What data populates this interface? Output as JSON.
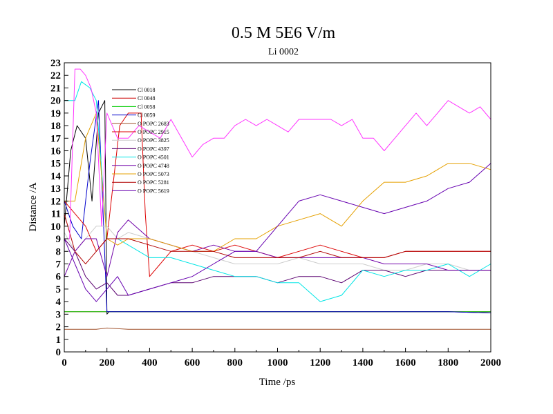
{
  "chart_data": {
    "type": "line",
    "title": "0.5 M 5E6 V/m",
    "subtitle": "Li 0002",
    "xlabel": "Time /ps",
    "ylabel": "Distance /A",
    "xlim": [
      0,
      2000
    ],
    "ylim": [
      0,
      23
    ],
    "xticks": [
      0,
      200,
      400,
      600,
      800,
      1000,
      1200,
      1400,
      1600,
      1800,
      2000
    ],
    "yticks": [
      0,
      1,
      2,
      3,
      4,
      5,
      6,
      7,
      8,
      9,
      10,
      11,
      12,
      13,
      14,
      15,
      16,
      17,
      18,
      19,
      20,
      21,
      22,
      23
    ],
    "grid": false,
    "legend_position": "upper-left inside",
    "series": [
      {
        "name": "Cl 0018",
        "color": "#000000",
        "x": [
          0,
          30,
          60,
          100,
          130,
          160,
          190,
          200,
          210,
          250,
          300,
          400,
          500,
          600,
          800,
          1000,
          1200,
          1400,
          1600,
          1800,
          2000
        ],
        "y": [
          10,
          16,
          18,
          17,
          12,
          19,
          20,
          3,
          3.2,
          3.2,
          3.2,
          3.2,
          3.2,
          3.2,
          3.2,
          3.2,
          3.2,
          3.2,
          3.2,
          3.2,
          3.1
        ]
      },
      {
        "name": "Cl 0048",
        "color": "#cc0000",
        "x": [
          0,
          100,
          200,
          300,
          400,
          500,
          600,
          800,
          1000,
          1200,
          1400,
          1600,
          1800,
          2000
        ],
        "y": [
          3.2,
          3.2,
          3.2,
          3.2,
          3.2,
          3.2,
          3.2,
          3.2,
          3.2,
          3.2,
          3.2,
          3.2,
          3.2,
          3.2
        ]
      },
      {
        "name": "Cl 0058",
        "color": "#00cc00",
        "x": [
          0,
          100,
          200,
          300,
          400,
          500,
          600,
          800,
          1000,
          1200,
          1400,
          1600,
          1800,
          2000
        ],
        "y": [
          3.2,
          3.2,
          3.2,
          3.2,
          3.2,
          3.2,
          3.2,
          3.2,
          3.2,
          3.2,
          3.2,
          3.2,
          3.2,
          3.2
        ]
      },
      {
        "name": "Cl 0059",
        "color": "#0000cc",
        "x": [
          0,
          40,
          80,
          120,
          160,
          180,
          200,
          250,
          300,
          400,
          600,
          800,
          1000,
          1200,
          1400,
          1600,
          1800,
          2000
        ],
        "y": [
          12,
          10,
          9,
          15,
          20,
          12,
          3.2,
          3.2,
          3.2,
          3.2,
          3.2,
          3.2,
          3.2,
          3.2,
          3.2,
          3.2,
          3.2,
          3.1
        ]
      },
      {
        "name": "O POPC 2683",
        "color": "#a0522d",
        "x": [
          0,
          100,
          150,
          200,
          300,
          400,
          600,
          800,
          1000,
          1200,
          1400,
          1600,
          1800,
          2000
        ],
        "y": [
          1.8,
          1.8,
          1.8,
          1.9,
          1.8,
          1.8,
          1.8,
          1.8,
          1.8,
          1.8,
          1.8,
          1.8,
          1.8,
          1.8
        ]
      },
      {
        "name": "O POPC 2915",
        "color": "#dd0000",
        "x": [
          0,
          100,
          150,
          200,
          260,
          300,
          360,
          380,
          400,
          450,
          500,
          600,
          700,
          800,
          900,
          1000,
          1100,
          1200,
          1300,
          1400,
          1500,
          1600,
          1700,
          1800,
          1900,
          2000
        ],
        "y": [
          12,
          10,
          8,
          9,
          18,
          19,
          19,
          11,
          6,
          7,
          8,
          8.5,
          8,
          8.5,
          8,
          7.5,
          8,
          8.5,
          8,
          7.5,
          7.5,
          8,
          8,
          8,
          8,
          8
        ]
      },
      {
        "name": "O POPC 3825",
        "color": "#cccccc",
        "x": [
          0,
          50,
          100,
          150,
          200,
          250,
          300,
          400,
          500,
          600,
          700,
          800,
          900,
          1000,
          1100,
          1200,
          1300,
          1400,
          1500,
          1600,
          1700,
          1800,
          1900,
          2000
        ],
        "y": [
          9.5,
          8,
          9,
          10,
          10,
          9,
          9.5,
          9,
          8.5,
          8,
          7.5,
          7,
          7,
          7,
          7.5,
          7,
          7,
          7,
          6.5,
          6.5,
          7,
          7,
          6.5,
          6.5
        ]
      },
      {
        "name": "O POPC 4397",
        "color": "#5a0070",
        "x": [
          0,
          50,
          100,
          150,
          200,
          250,
          300,
          400,
          500,
          600,
          700,
          800,
          900,
          1000,
          1100,
          1200,
          1300,
          1400,
          1500,
          1600,
          1700,
          1800,
          1900,
          2000
        ],
        "y": [
          9,
          8,
          6,
          5,
          5.5,
          4.5,
          4.5,
          5,
          5.5,
          5.5,
          6,
          6,
          6,
          5.5,
          6,
          6,
          5.5,
          6.5,
          6.5,
          6,
          6.5,
          6.5,
          6.5,
          6.5
        ]
      },
      {
        "name": "O POPC 4501",
        "color": "#00e5e5",
        "x": [
          0,
          50,
          80,
          120,
          150,
          200,
          250,
          300,
          400,
          500,
          600,
          700,
          800,
          900,
          1000,
          1100,
          1200,
          1300,
          1400,
          1500,
          1600,
          1700,
          1800,
          1900,
          2000
        ],
        "y": [
          20,
          20,
          21.5,
          21,
          20,
          9,
          9,
          8.5,
          7.5,
          7.5,
          7,
          6.5,
          6,
          6,
          5.5,
          5.5,
          4,
          4.5,
          6.5,
          6,
          6.5,
          6.5,
          7,
          6,
          7
        ]
      },
      {
        "name": "O POPC 4748",
        "color": "#7000a8",
        "x": [
          0,
          50,
          100,
          150,
          200,
          250,
          300,
          400,
          500,
          600,
          700,
          800,
          900,
          1000,
          1100,
          1200,
          1300,
          1400,
          1500,
          1600,
          1700,
          1800,
          1900,
          2000
        ],
        "y": [
          6,
          8,
          9,
          9,
          6,
          9.5,
          10.5,
          9,
          8.5,
          8,
          8.5,
          8,
          8,
          7.5,
          7.5,
          7.5,
          7.5,
          7.5,
          7,
          7,
          7,
          6.5,
          6.5,
          6.5
        ]
      },
      {
        "name": "O POPC 5073",
        "color": "#e5a000",
        "x": [
          0,
          50,
          100,
          150,
          200,
          250,
          300,
          400,
          500,
          600,
          700,
          800,
          900,
          1000,
          1100,
          1200,
          1300,
          1400,
          1500,
          1600,
          1700,
          1800,
          1900,
          2000
        ],
        "y": [
          12,
          12,
          17,
          19,
          9,
          8.5,
          9,
          9,
          8.5,
          8,
          8,
          9,
          9,
          10,
          10.5,
          11,
          10,
          12,
          13.5,
          13.5,
          14,
          15,
          15,
          14.5
        ]
      },
      {
        "name": "O POPC 5281",
        "color": "#b00000",
        "x": [
          0,
          50,
          100,
          150,
          200,
          250,
          300,
          400,
          500,
          600,
          700,
          800,
          900,
          1000,
          1100,
          1200,
          1300,
          1400,
          1500,
          1600,
          1700,
          1800,
          1900,
          2000
        ],
        "y": [
          11,
          8,
          7,
          8,
          9,
          9,
          9,
          8.5,
          8,
          8,
          8,
          7.5,
          7.5,
          7.5,
          7.5,
          8,
          7.5,
          7.5,
          7.5,
          8,
          8,
          8,
          8,
          8
        ]
      },
      {
        "name": "O POPC 5619",
        "color": "#6600b0",
        "x": [
          0,
          50,
          100,
          150,
          200,
          250,
          300,
          400,
          500,
          600,
          700,
          800,
          900,
          1000,
          1100,
          1200,
          1300,
          1400,
          1500,
          1600,
          1700,
          1800,
          1900,
          2000
        ],
        "y": [
          9,
          7,
          5,
          4,
          5,
          6,
          4.5,
          5,
          5.5,
          6,
          7,
          8,
          8,
          10,
          12,
          12.5,
          12,
          11.5,
          11,
          11.5,
          12,
          13,
          13.5,
          15
        ]
      },
      {
        "name": "",
        "color": "#ff33ff",
        "x": [
          0,
          25,
          50,
          75,
          100,
          125,
          150,
          175,
          200,
          250,
          300,
          350,
          400,
          450,
          500,
          550,
          600,
          650,
          700,
          750,
          800,
          850,
          900,
          950,
          1000,
          1050,
          1100,
          1150,
          1200,
          1250,
          1300,
          1350,
          1400,
          1450,
          1500,
          1550,
          1600,
          1650,
          1700,
          1750,
          1800,
          1850,
          1900,
          1950,
          2000
        ],
        "y": [
          9,
          9,
          22.5,
          22.5,
          22,
          21,
          19,
          10,
          19,
          17,
          17,
          18,
          17.5,
          17,
          18.5,
          17,
          15.5,
          16.5,
          17,
          17,
          18,
          18.5,
          18,
          18.5,
          18,
          17.5,
          18.5,
          18.5,
          18.5,
          18.5,
          18,
          18.5,
          17,
          17,
          16,
          17,
          18,
          19,
          18,
          19,
          20,
          19.5,
          19,
          19.5,
          18.5
        ]
      }
    ],
    "legend_entries": [
      "Cl 0018",
      "Cl 0048",
      "Cl 0058",
      "Cl 0059",
      "O POPC 2683",
      "O POPC 2915",
      "O POPC 3825",
      "O POPC 4397",
      "O POPC 4501",
      "O POPC 4748",
      "O POPC 5073",
      "O POPC 5281",
      "O POPC 5619"
    ]
  }
}
